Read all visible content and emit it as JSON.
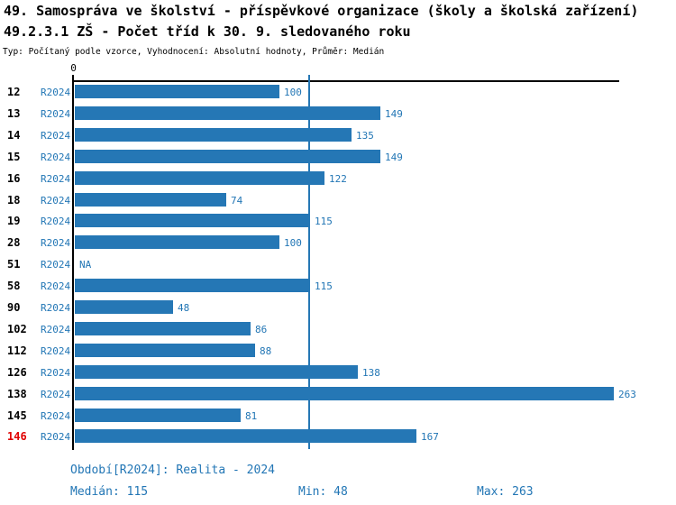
{
  "header": {
    "title_line1": "49. Samospráva ve školství - příspěvkové organizace (školy a školská zařízení)",
    "title_line2": "49.2.3.1 ZŠ - Počet tříd k 30. 9. sledovaného roku",
    "subtitle": "Typ: Počítaný podle vzorce, Vyhodnocení: Absolutní hodnoty, Průměr: Medián"
  },
  "colors": {
    "bar_blue": "#2577B5",
    "text_blue": "#2276B5",
    "highlight_red": "#E00000",
    "axis_black": "#000000"
  },
  "chart_data": {
    "type": "bar",
    "orientation": "horizontal",
    "x_origin_label": "0",
    "xlim": [
      0,
      266
    ],
    "median_reference_line": 115,
    "categories": [
      "12",
      "13",
      "14",
      "15",
      "16",
      "18",
      "19",
      "28",
      "51",
      "58",
      "90",
      "102",
      "112",
      "126",
      "138",
      "145",
      "146"
    ],
    "series": [
      {
        "name": "R2024",
        "values": [
          100,
          149,
          135,
          149,
          122,
          74,
          115,
          100,
          null,
          115,
          48,
          86,
          88,
          138,
          263,
          81,
          167
        ]
      }
    ],
    "rows": [
      {
        "id": "12",
        "period": "R2024",
        "value": 100,
        "label": "100",
        "highlight": false
      },
      {
        "id": "13",
        "period": "R2024",
        "value": 149,
        "label": "149",
        "highlight": false
      },
      {
        "id": "14",
        "period": "R2024",
        "value": 135,
        "label": "135",
        "highlight": false
      },
      {
        "id": "15",
        "period": "R2024",
        "value": 149,
        "label": "149",
        "highlight": false
      },
      {
        "id": "16",
        "period": "R2024",
        "value": 122,
        "label": "122",
        "highlight": false
      },
      {
        "id": "18",
        "period": "R2024",
        "value": 74,
        "label": "74",
        "highlight": false
      },
      {
        "id": "19",
        "period": "R2024",
        "value": 115,
        "label": "115",
        "highlight": false
      },
      {
        "id": "28",
        "period": "R2024",
        "value": 100,
        "label": "100",
        "highlight": false
      },
      {
        "id": "51",
        "period": "R2024",
        "value": null,
        "label": "NA",
        "highlight": false
      },
      {
        "id": "58",
        "period": "R2024",
        "value": 115,
        "label": "115",
        "highlight": false
      },
      {
        "id": "90",
        "period": "R2024",
        "value": 48,
        "label": "48",
        "highlight": false
      },
      {
        "id": "102",
        "period": "R2024",
        "value": 86,
        "label": "86",
        "highlight": false
      },
      {
        "id": "112",
        "period": "R2024",
        "value": 88,
        "label": "88",
        "highlight": false
      },
      {
        "id": "126",
        "period": "R2024",
        "value": 138,
        "label": "138",
        "highlight": false
      },
      {
        "id": "138",
        "period": "R2024",
        "value": 263,
        "label": "263",
        "highlight": false
      },
      {
        "id": "145",
        "period": "R2024",
        "value": 81,
        "label": "81",
        "highlight": false
      },
      {
        "id": "146",
        "period": "R2024",
        "value": 167,
        "label": "167",
        "highlight": true
      }
    ],
    "stats": {
      "median": 115,
      "min": 48,
      "max": 263
    }
  },
  "footer": {
    "period_label": "Období[R2024]: Realita - 2024",
    "median_label": "Medián: 115",
    "min_label": "Min: 48",
    "max_label": "Max: 263"
  }
}
